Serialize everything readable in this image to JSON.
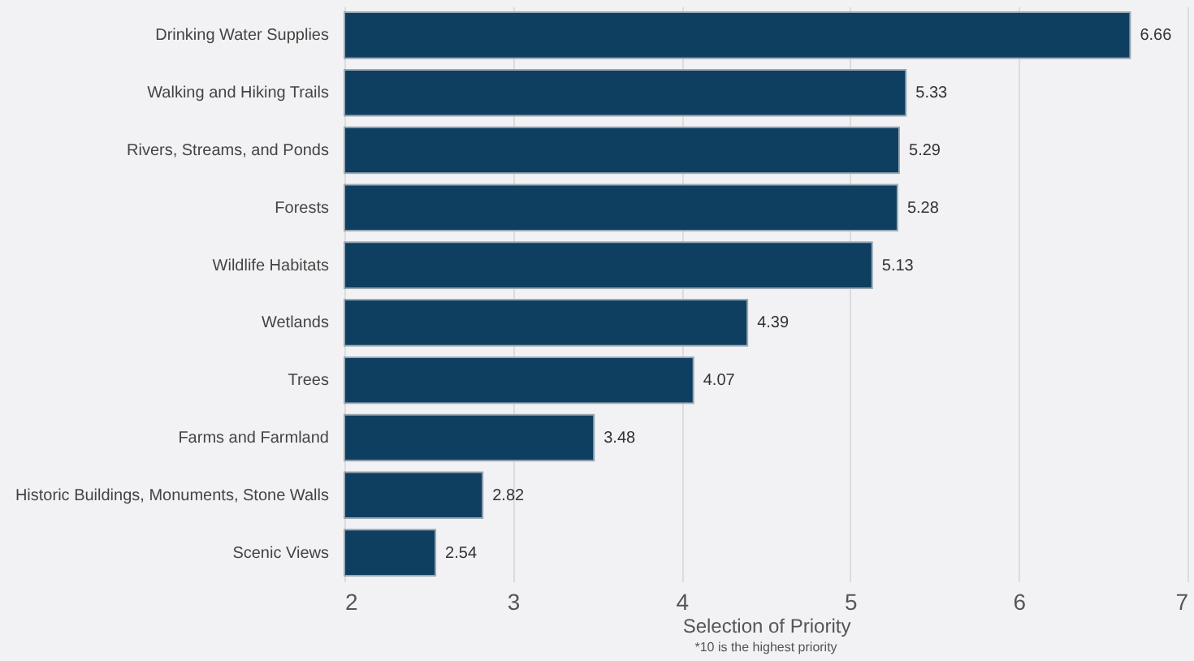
{
  "chart_data": {
    "type": "bar",
    "orientation": "horizontal",
    "xlabel": "Selection of Priority",
    "annotations": [
      "*10 is the highest priority"
    ],
    "categories": [
      "Drinking Water Supplies",
      "Walking and Hiking Trails",
      "Rivers, Streams, and Ponds",
      "Forests",
      "Wildlife Habitats",
      "Wetlands",
      "Trees",
      "Farms and Farmland",
      "Historic Buildings, Monuments, Stone Walls",
      "Scenic Views"
    ],
    "values": [
      6.66,
      5.33,
      5.29,
      5.28,
      5.13,
      4.39,
      4.07,
      3.48,
      2.82,
      2.54
    ],
    "color": "#0e3f60",
    "xlim": [
      2,
      7
    ],
    "xticks": [
      2,
      3,
      4,
      5,
      6,
      7
    ],
    "grid": "x",
    "data_labels": true
  }
}
